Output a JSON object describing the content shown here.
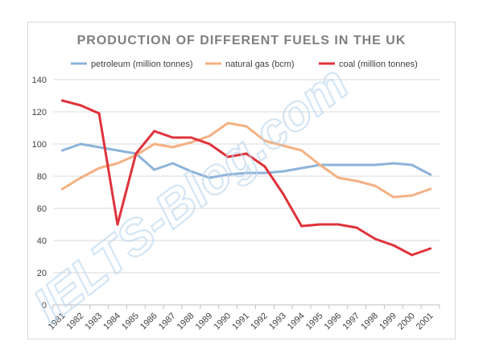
{
  "chart_data": {
    "type": "line",
    "title": "PRODUCTION OF DIFFERENT FUELS IN THE UK",
    "xlabel": "",
    "ylabel": "",
    "ylim": [
      0,
      140
    ],
    "yticks": [
      0,
      20,
      40,
      60,
      80,
      100,
      120,
      140
    ],
    "grid": true,
    "legend_position": "top",
    "categories": [
      "1981",
      "1982",
      "1983",
      "1984",
      "1985",
      "1986",
      "1987",
      "1988",
      "1989",
      "1990",
      "1991",
      "1992",
      "1993",
      "1994",
      "1995",
      "1996",
      "1997",
      "1998",
      "1999",
      "2000",
      "2001"
    ],
    "series": [
      {
        "name": "petroleum (million tonnes)",
        "color": "#8db4d9",
        "values": [
          96,
          100,
          98,
          96,
          94,
          84,
          88,
          83,
          79,
          81,
          82,
          82,
          83,
          85,
          87,
          87,
          87,
          87,
          88,
          87,
          81
        ]
      },
      {
        "name": "natural gas (bcm)",
        "color": "#f4b183",
        "values": [
          72,
          79,
          85,
          88,
          93,
          100,
          98,
          101,
          105,
          113,
          111,
          102,
          99,
          96,
          87,
          79,
          77,
          74,
          67,
          68,
          72
        ]
      },
      {
        "name": "coal (million tonnes)",
        "color": "#e0323b",
        "values": [
          127,
          124,
          119,
          50,
          94,
          108,
          104,
          104,
          100,
          92,
          94,
          86,
          69,
          49,
          50,
          50,
          48,
          41,
          37,
          31,
          35
        ]
      }
    ]
  },
  "watermark": "IELTS-Blog.com",
  "colors": {
    "grid": "#d9d9d9",
    "axis": "#bfbfbf",
    "title": "#7f7f7f",
    "text": "#404040"
  }
}
